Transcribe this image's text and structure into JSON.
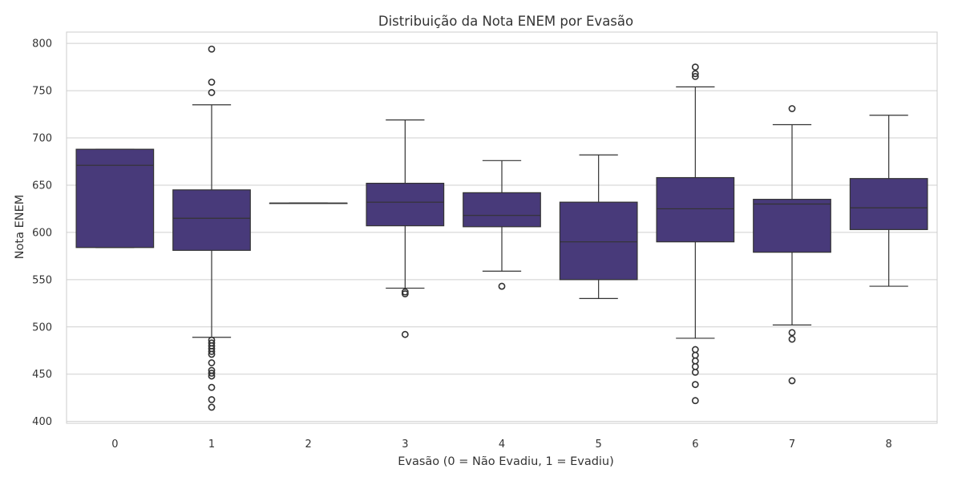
{
  "chart_data": {
    "type": "box",
    "title": "Distribuição da Nota ENEM por Evasão",
    "xlabel": "Evasão (0 = Não Evadiu, 1 = Evadiu)",
    "ylabel": "Nota ENEM",
    "ylim": [
      398,
      812
    ],
    "yticks": [
      400,
      450,
      500,
      550,
      600,
      650,
      700,
      750,
      800
    ],
    "grid": true,
    "colors": {
      "box": "#483a7a",
      "line": "#333333",
      "grid": "#cfcfcf",
      "frame": "#cccccc"
    },
    "categories": [
      "0",
      "1",
      "2",
      "3",
      "4",
      "5",
      "6",
      "7",
      "8"
    ],
    "boxes": [
      {
        "category": "0",
        "whisker_low": 584,
        "q1": 584,
        "median": 671,
        "q3": 688,
        "whisker_high": 688,
        "outliers": []
      },
      {
        "category": "1",
        "whisker_low": 489,
        "q1": 581,
        "median": 615,
        "q3": 645,
        "whisker_high": 735,
        "outliers": [
          794,
          759,
          748,
          486,
          483,
          480,
          477,
          474,
          471,
          462,
          454,
          451,
          448,
          436,
          423,
          415
        ]
      },
      {
        "category": "2",
        "whisker_low": 631,
        "q1": 631,
        "median": 631,
        "q3": 631,
        "whisker_high": 631,
        "outliers": []
      },
      {
        "category": "3",
        "whisker_low": 541,
        "q1": 607,
        "median": 632,
        "q3": 652,
        "whisker_high": 719,
        "outliers": [
          537,
          535,
          492
        ]
      },
      {
        "category": "4",
        "whisker_low": 559,
        "q1": 606,
        "median": 618,
        "q3": 642,
        "whisker_high": 676,
        "outliers": [
          543
        ]
      },
      {
        "category": "5",
        "whisker_low": 530,
        "q1": 550,
        "median": 590,
        "q3": 632,
        "whisker_high": 682,
        "outliers": []
      },
      {
        "category": "6",
        "whisker_low": 488,
        "q1": 590,
        "median": 625,
        "q3": 658,
        "whisker_high": 754,
        "outliers": [
          775,
          768,
          765,
          476,
          470,
          464,
          458,
          452,
          439,
          422
        ]
      },
      {
        "category": "7",
        "whisker_low": 502,
        "q1": 579,
        "median": 630,
        "q3": 635,
        "whisker_high": 714,
        "outliers": [
          731,
          494,
          487,
          443
        ]
      },
      {
        "category": "8",
        "whisker_low": 543,
        "q1": 603,
        "median": 626,
        "q3": 657,
        "whisker_high": 724,
        "outliers": []
      }
    ]
  }
}
